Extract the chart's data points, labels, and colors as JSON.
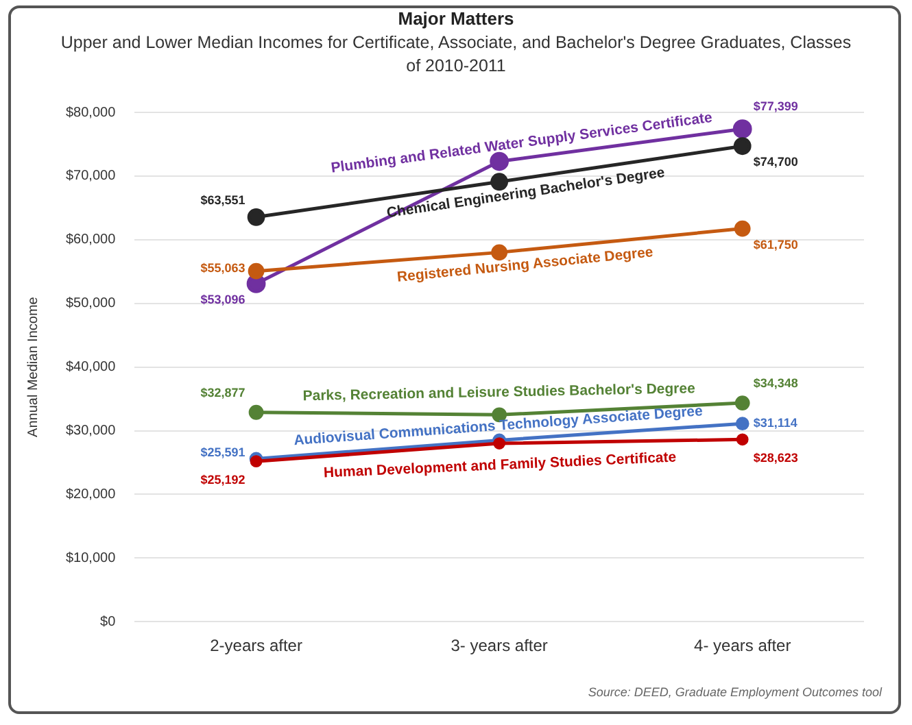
{
  "chart_data": {
    "type": "line",
    "title": "Major Matters",
    "subtitle": "Upper and Lower Median Incomes for Certificate, Associate, and Bachelor's Degree Graduates, Classes of 2010-2011",
    "ylabel": "Annual Median Income",
    "categories": [
      "2-years after",
      "3- years after",
      "4- years after"
    ],
    "series": [
      {
        "name": "Plumbing and Related Water Supply Services Certificate",
        "color": "#7030a0",
        "values": [
          53096,
          72300,
          77399
        ],
        "value_labels": [
          "$53,096",
          null,
          "$77,399"
        ]
      },
      {
        "name": "Chemical Engineering Bachelor's Degree",
        "color": "#262626",
        "values": [
          63551,
          69100,
          74700
        ],
        "value_labels": [
          "$63,551",
          null,
          "$74,700"
        ]
      },
      {
        "name": "Registered Nursing Associate Degree",
        "color": "#c55a11",
        "values": [
          55063,
          58000,
          61750
        ],
        "value_labels": [
          "$55,063",
          null,
          "$61,750"
        ]
      },
      {
        "name": "Parks, Recreation and Leisure Studies Bachelor's Degree",
        "color": "#548235",
        "values": [
          32877,
          32500,
          34348
        ],
        "value_labels": [
          "$32,877",
          null,
          "$34,348"
        ]
      },
      {
        "name": "Audiovisual Communications Technology Associate Degree",
        "color": "#4472c4",
        "values": [
          25591,
          28500,
          31114
        ],
        "value_labels": [
          "$25,591",
          null,
          "$31,114"
        ]
      },
      {
        "name": "Human Development and Family Studies Certificate",
        "color": "#c00000",
        "values": [
          25192,
          28000,
          28623
        ],
        "value_labels": [
          "$25,192",
          null,
          "$28,623"
        ]
      }
    ],
    "ylim": [
      0,
      80000
    ],
    "yticks": [
      {
        "value": 0,
        "label": "$0"
      },
      {
        "value": 10000,
        "label": "$10,000"
      },
      {
        "value": 20000,
        "label": "$20,000"
      },
      {
        "value": 30000,
        "label": "$30,000"
      },
      {
        "value": 40000,
        "label": "$40,000"
      },
      {
        "value": 50000,
        "label": "$50,000"
      },
      {
        "value": 60000,
        "label": "$60,000"
      },
      {
        "value": 70000,
        "label": "$70,000"
      },
      {
        "value": 80000,
        "label": "$80,000"
      }
    ],
    "grid": "y",
    "legend": false,
    "marker": "circle",
    "line_style": "solid",
    "annotations": [
      "Source: DEED, Graduate Employment Outcomes tool"
    ]
  }
}
